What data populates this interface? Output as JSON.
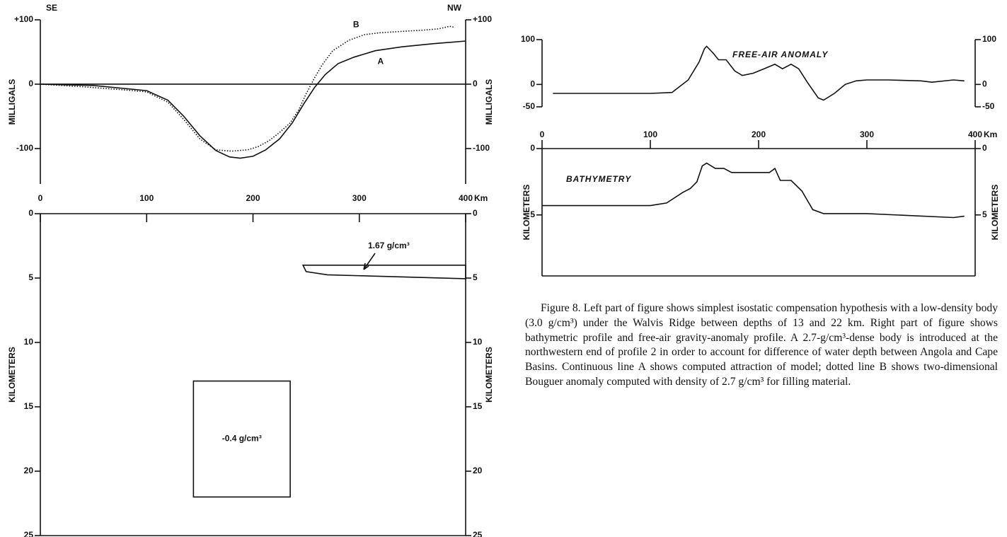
{
  "chart_data": [
    {
      "type": "line",
      "xlim": [
        0,
        400
      ],
      "ylim": [
        -155,
        100
      ],
      "xticks": [
        0,
        100,
        200,
        300,
        400
      ],
      "x_unit": "Km",
      "yticks": [
        {
          "value": 100,
          "label": "+100"
        },
        0,
        -100
      ],
      "y_label": "MILLIGALS",
      "corner_labels": [
        "SE",
        "NW"
      ],
      "series": [
        {
          "name": "A",
          "color": "#111111",
          "dash": "solid",
          "x": [
            0,
            50,
            100,
            120,
            135,
            150,
            165,
            178,
            188,
            200,
            212,
            225,
            237,
            248,
            258,
            268,
            280,
            295,
            315,
            340,
            370,
            400
          ],
          "values": [
            0,
            -2,
            -10,
            -25,
            -50,
            -80,
            -103,
            -113,
            -115,
            -112,
            -102,
            -85,
            -60,
            -30,
            -5,
            15,
            32,
            42,
            52,
            58,
            63,
            67
          ]
        },
        {
          "name": "B",
          "color": "#111111",
          "dash": "dotted",
          "x": [
            0,
            40,
            80,
            100,
            120,
            135,
            150,
            165,
            180,
            195,
            205,
            215,
            225,
            235,
            243,
            250,
            258,
            265,
            275,
            290,
            305,
            320,
            340,
            360,
            375,
            385,
            390
          ],
          "values": [
            0,
            -4,
            -9,
            -12,
            -28,
            -55,
            -85,
            -102,
            -104,
            -102,
            -97,
            -88,
            -75,
            -60,
            -40,
            -15,
            10,
            30,
            52,
            68,
            77,
            80,
            82,
            84,
            86,
            90,
            88
          ]
        }
      ]
    },
    {
      "type": "section",
      "xlim": [
        0,
        400
      ],
      "ylim": [
        0,
        25
      ],
      "y_inverted": true,
      "xticks": [
        0,
        100,
        200,
        300,
        400
      ],
      "yticks": [
        0,
        5,
        10,
        15,
        20,
        25
      ],
      "y_label": "KILOMETERS",
      "bodies": [
        {
          "label": "1.67 g/cm³",
          "x": [
            247,
            400,
            400,
            270,
            250
          ],
          "y": [
            4,
            4,
            5.05,
            4.75,
            4.5
          ]
        },
        {
          "label": "-0.4 g/cm³",
          "x": [
            144,
            235,
            235,
            144
          ],
          "y": [
            13,
            13,
            22,
            22
          ]
        }
      ]
    },
    {
      "type": "line",
      "title": "FREE-AIR ANOMALY",
      "xlim": [
        0,
        400
      ],
      "ylim": [
        -50,
        100
      ],
      "yticks": [
        100,
        0,
        -50
      ],
      "series": [
        {
          "color": "#111111",
          "dash": "solid",
          "x": [
            10,
            100,
            120,
            135,
            145,
            150,
            152,
            158,
            163,
            170,
            178,
            185,
            195,
            205,
            215,
            222,
            230,
            237,
            245,
            255,
            260,
            270,
            280,
            290,
            300,
            320,
            350,
            360,
            380,
            390
          ],
          "values": [
            -20,
            -20,
            -18,
            10,
            50,
            80,
            85,
            70,
            55,
            55,
            30,
            20,
            25,
            35,
            45,
            35,
            45,
            35,
            5,
            -30,
            -35,
            -20,
            0,
            8,
            10,
            10,
            8,
            5,
            10,
            8
          ]
        }
      ]
    },
    {
      "type": "line",
      "title": "BATHYMETRY",
      "xlim": [
        0,
        400
      ],
      "ylim": [
        0,
        9.6
      ],
      "y_inverted": true,
      "xticks": [
        0,
        100,
        200,
        300,
        400
      ],
      "x_unit": "Km",
      "yticks": [
        0,
        5
      ],
      "y_label": "KILOMETERS",
      "series": [
        {
          "color": "#111111",
          "dash": "solid",
          "x": [
            0,
            100,
            115,
            130,
            137,
            143,
            148,
            152,
            160,
            168,
            175,
            210,
            215,
            220,
            230,
            240,
            250,
            260,
            300,
            380,
            390
          ],
          "values": [
            4.3,
            4.3,
            4.1,
            3.3,
            3.0,
            2.5,
            1.3,
            1.1,
            1.5,
            1.5,
            1.8,
            1.8,
            1.5,
            2.4,
            2.4,
            3.2,
            4.6,
            4.9,
            4.9,
            5.2,
            5.1
          ]
        }
      ]
    }
  ],
  "caption": "Figure 8. Left part of figure shows simplest isostatic compensation hypothesis with a low-density body (3.0 g/cm³) under the Walvis Ridge between depths of 13 and 22 km. Right part of figure shows bathymetric profile and free-air gravity-anomaly profile. A 2.7-g/cm³-dense body is introduced at the northwestern end of profile 2 in order to account for difference of water depth between Angola and Cape Basins. Continuous line A shows computed attraction of model; dotted line B shows two-dimensional Bouguer anomaly computed with density of 2.7 g/cm³ for filling material."
}
